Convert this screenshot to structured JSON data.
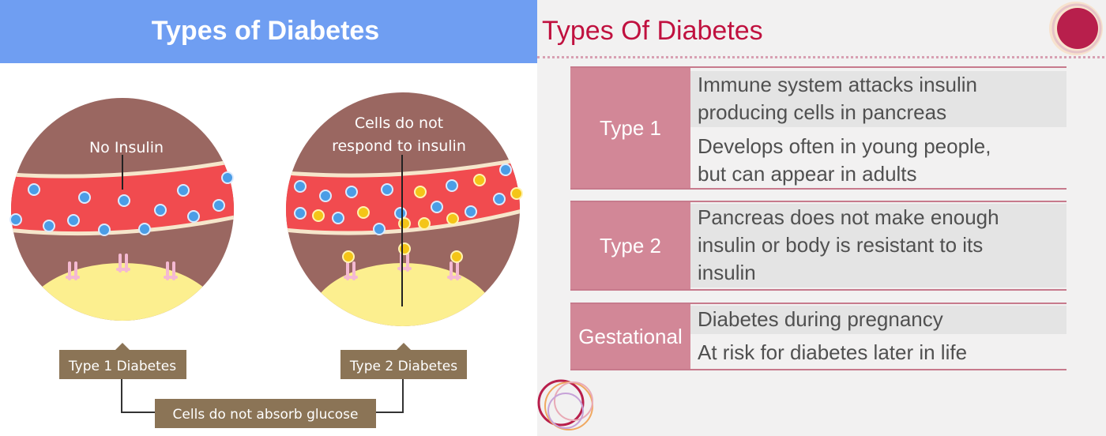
{
  "left": {
    "title": "Types of Diabetes",
    "type1_callout": "No Insulin",
    "type2_callout_line1": "Cells do not",
    "type2_callout_line2": "respond to insulin",
    "type1_label": "Type 1 Diabetes",
    "type2_label": "Type 2 Diabetes",
    "bottom_label": "Cells do not absorb glucose"
  },
  "right": {
    "title": "Types Of Diabetes",
    "rows": [
      {
        "type": "Type 1",
        "descriptions": [
          [
            "Immune system attacks insulin",
            "producing cells in pancreas"
          ],
          [
            "Develops often in young people,",
            "but can appear in adults"
          ]
        ]
      },
      {
        "type": "Type 2",
        "descriptions": [
          [
            "Pancreas does not make enough",
            "insulin or body is resistant to its",
            "insulin"
          ]
        ]
      },
      {
        "type": "Gestational",
        "descriptions": [
          [
            "Diabetes during pregnancy"
          ],
          [
            "At risk for diabetes later in life"
          ]
        ]
      }
    ]
  },
  "colors": {
    "header_blue": "#6f9ef2",
    "title_red": "#c0113f",
    "type_pink": "#d28797",
    "label_brown": "#8b7456",
    "vessel_red": "#f14b4f",
    "tissue_brown": "#9a6761",
    "cell_yellow": "#fcef8f",
    "insulin_blue": "#4b9de6",
    "glucose_yellow": "#f4c518"
  }
}
